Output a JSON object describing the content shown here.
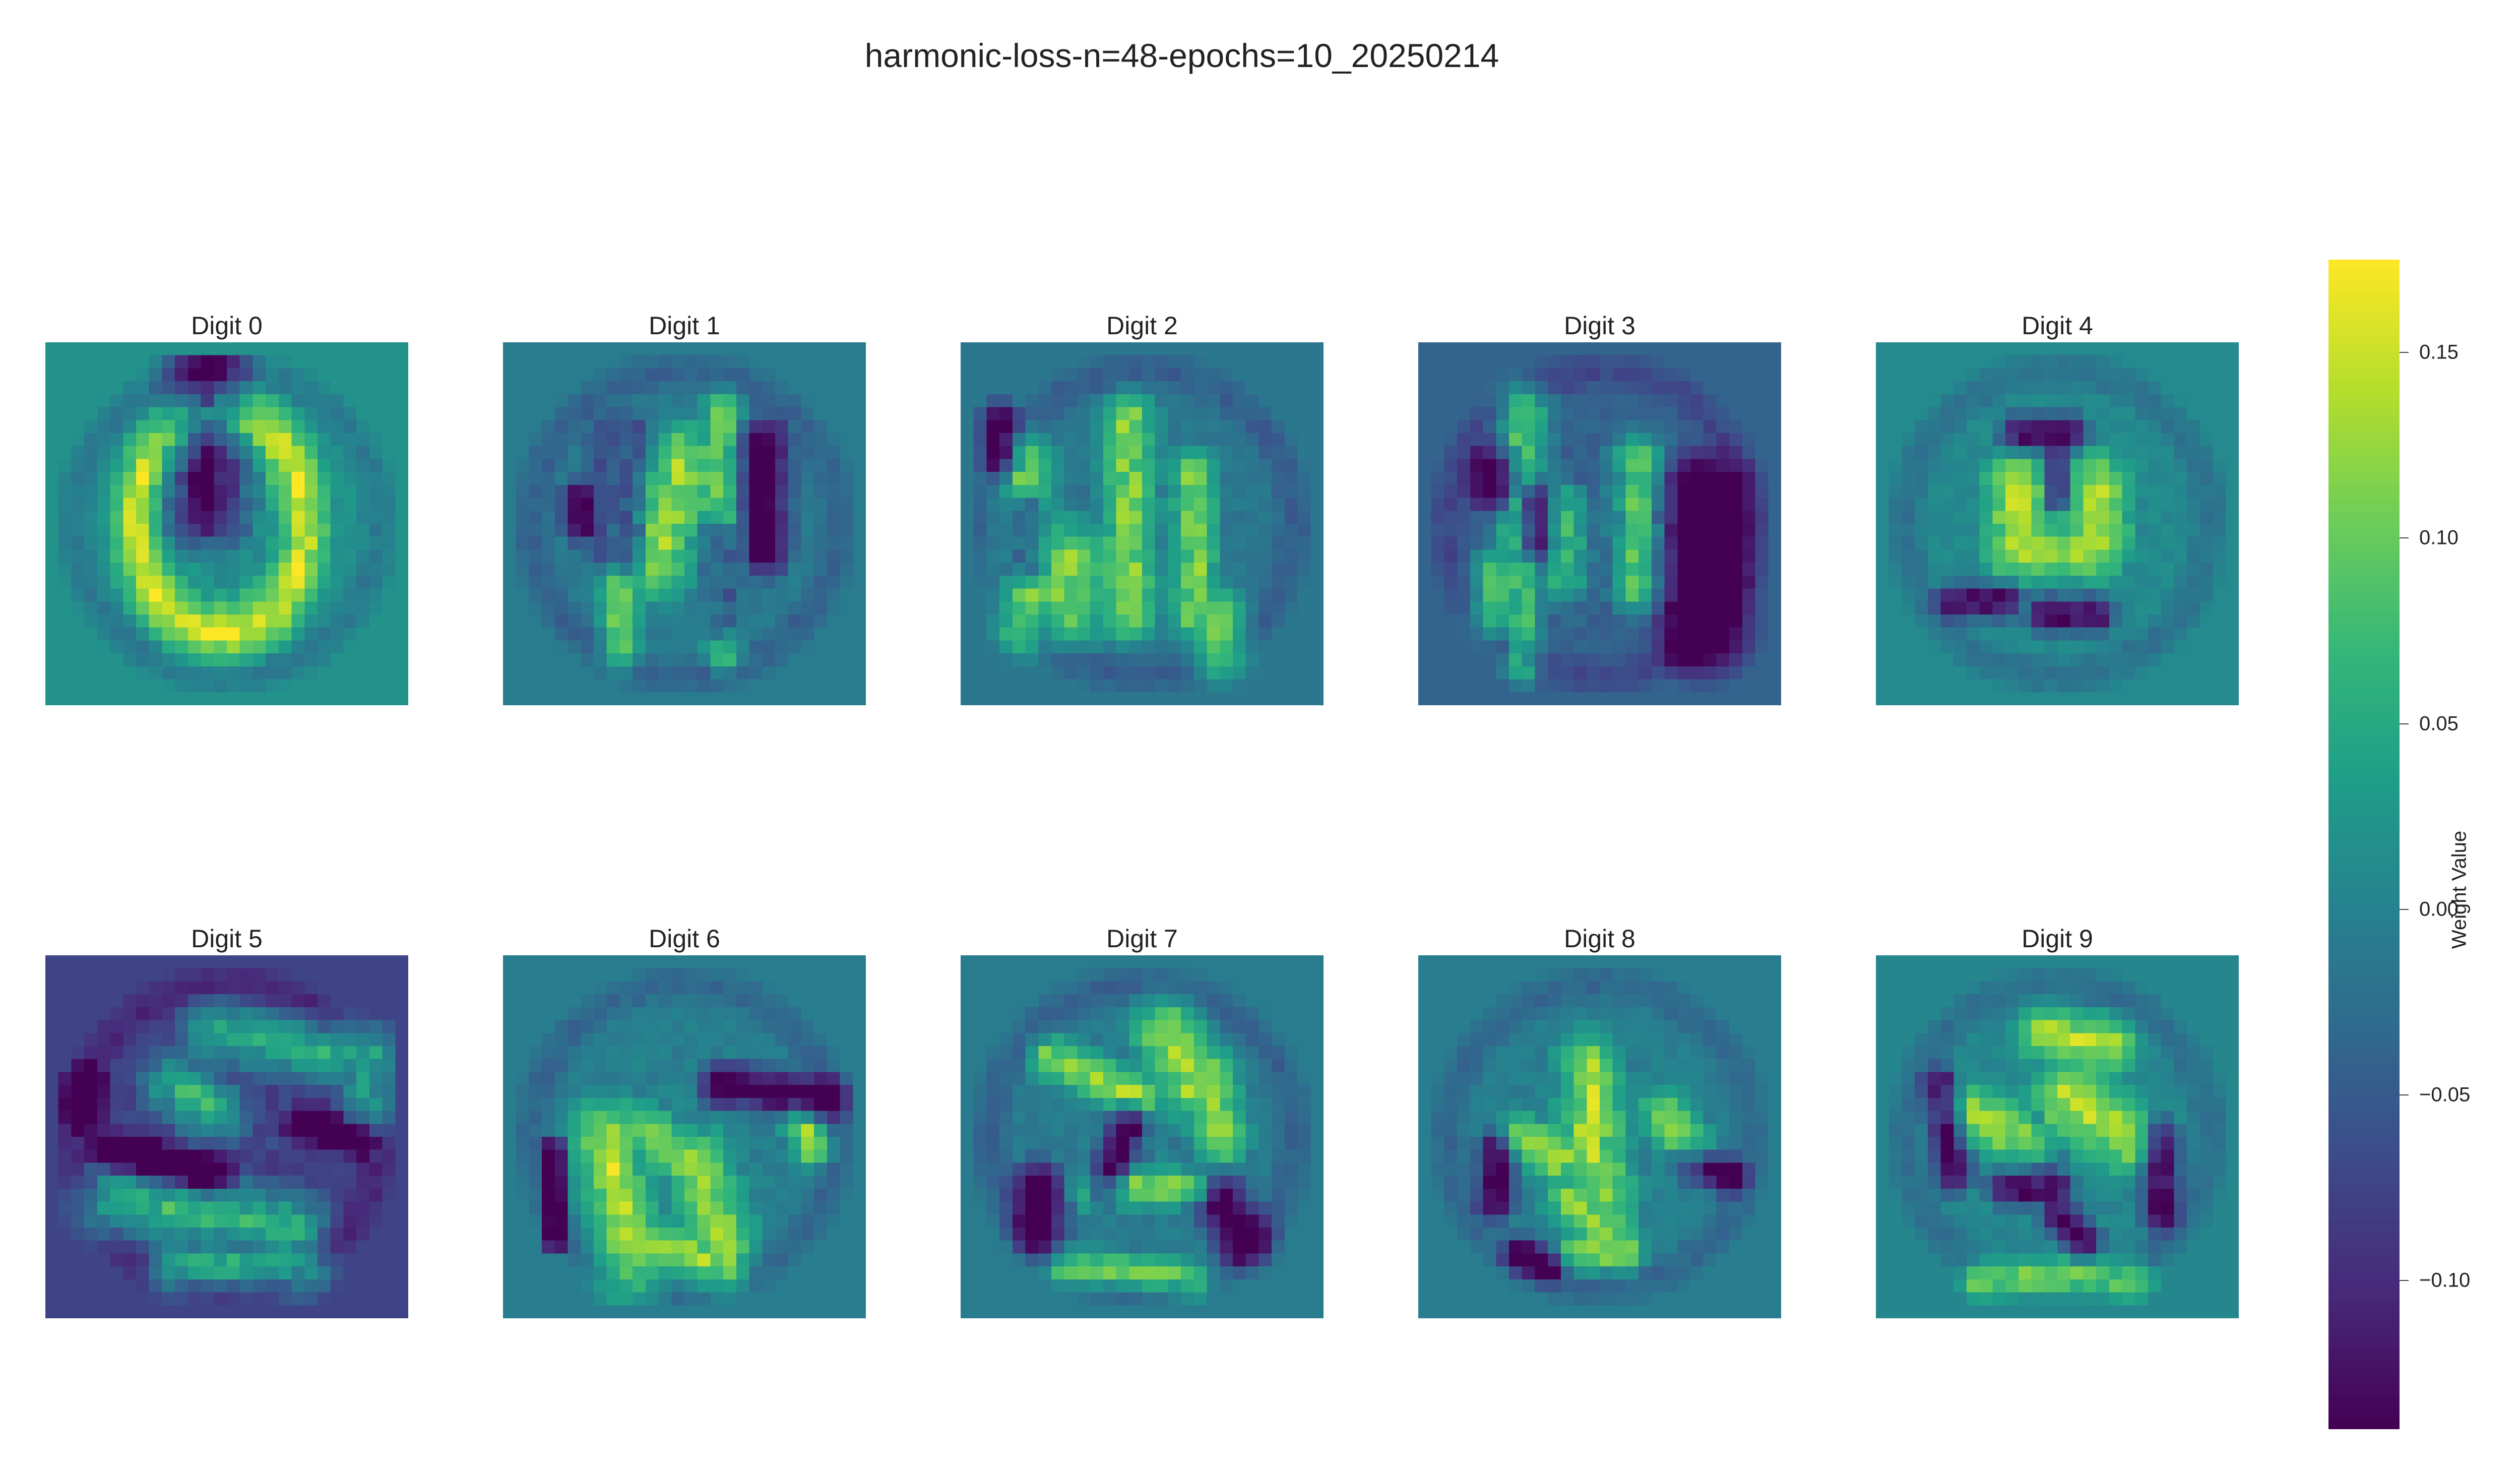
{
  "chart_data": {
    "type": "heatmap",
    "title": "harmonic-loss-n=48-epochs=10_20250214",
    "colormap": "viridis",
    "grid": false,
    "panels": [
      {
        "title": "Digit 0",
        "digit": 0
      },
      {
        "title": "Digit 1",
        "digit": 1
      },
      {
        "title": "Digit 2",
        "digit": 2
      },
      {
        "title": "Digit 3",
        "digit": 3
      },
      {
        "title": "Digit 4",
        "digit": 4
      },
      {
        "title": "Digit 5",
        "digit": 5
      },
      {
        "title": "Digit 6",
        "digit": 6
      },
      {
        "title": "Digit 7",
        "digit": 7
      },
      {
        "title": "Digit 8",
        "digit": 8
      },
      {
        "title": "Digit 9",
        "digit": 9
      }
    ],
    "grid_size": [
      28,
      28
    ],
    "background_values": [
      0.02,
      -0.01,
      -0.015,
      -0.04,
      0.01,
      -0.075,
      -0.005,
      -0.01,
      -0.005,
      0.005
    ],
    "colorbar": {
      "label": "Weight Value",
      "vmin": -0.14,
      "vmax": 0.175,
      "ticks": [
        0.15,
        0.1,
        0.05,
        0.0,
        -0.05,
        -0.1
      ],
      "tick_labels": [
        "0.15",
        "0.10",
        "0.05",
        "0.00",
        "−0.05",
        "−0.10"
      ]
    }
  }
}
